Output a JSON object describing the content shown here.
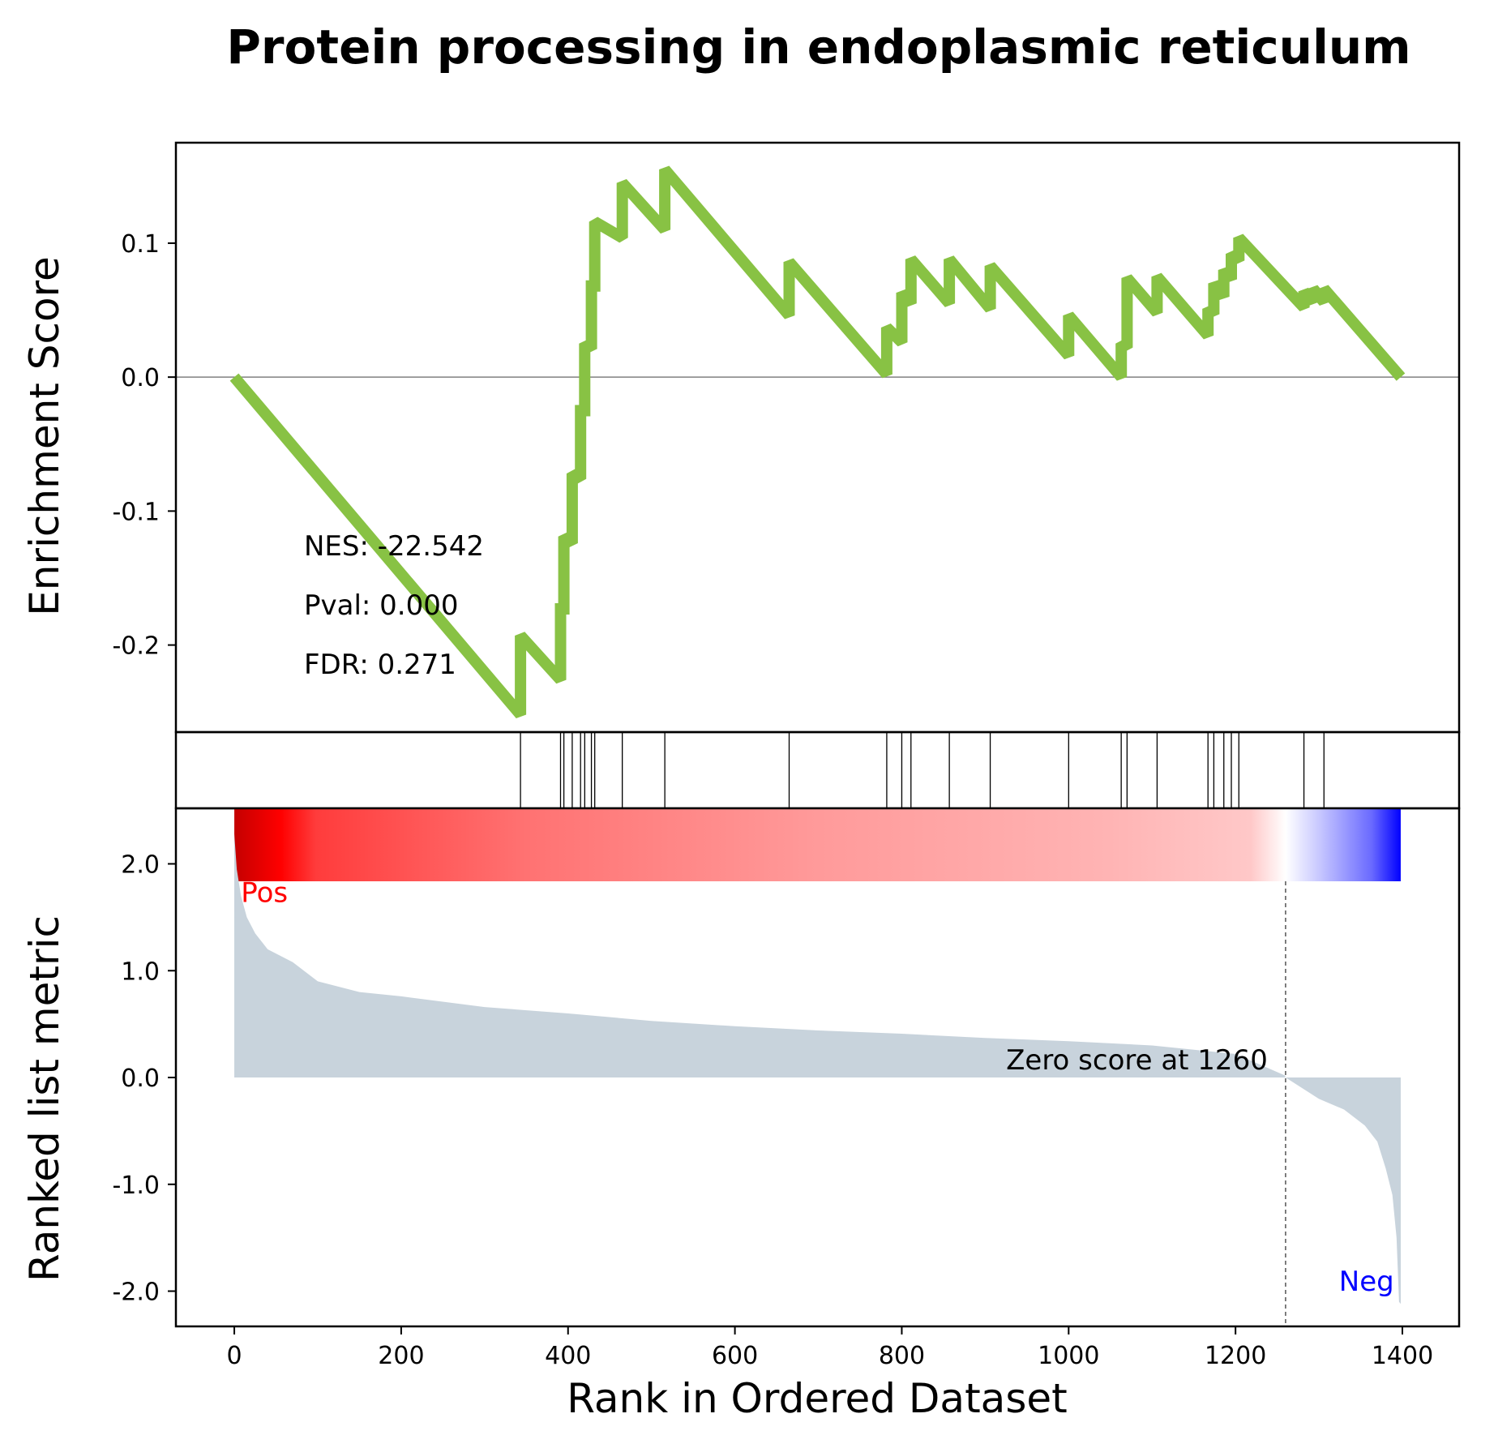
{
  "title": "Protein processing in endoplasmic reticulum",
  "colors": {
    "es_line": "#88c244",
    "metric_fill": "#c8d3dc",
    "pos_label": "#ff0000",
    "neg_label": "#0000ff",
    "heat_red": "#ff0000",
    "heat_blue": "#0000ff"
  },
  "chart_data": {
    "type": "line",
    "xlabel": "Rank in Ordered Dataset",
    "x_ticks": [
      0,
      200,
      400,
      600,
      800,
      1000,
      1200,
      1400
    ],
    "x_tick_labels": [
      "0",
      "200",
      "400",
      "600",
      "800",
      "1000",
      "1200",
      "1400"
    ],
    "xlim": [
      -70,
      1468
    ],
    "n_ranks": 1398,
    "enrichment": {
      "ylabel": "Enrichment Score",
      "ylim": [
        -0.265,
        0.175
      ],
      "y_ticks": [
        0.1,
        0.0,
        -0.1,
        -0.2
      ],
      "y_tick_labels": [
        "0.1",
        "0.0",
        "-0.1",
        "-0.2"
      ],
      "zero_line": true,
      "stats": [
        "NES: -22.542",
        "Pval: 0.000",
        "FDR: 0.271"
      ],
      "points": [
        [
          0,
          0.0
        ],
        [
          343,
          -0.252
        ],
        [
          343,
          -0.193
        ],
        [
          391,
          -0.226
        ],
        [
          391,
          -0.173
        ],
        [
          395,
          -0.173
        ],
        [
          395,
          -0.119
        ],
        [
          405,
          -0.124
        ],
        [
          405,
          -0.072
        ],
        [
          415,
          -0.076
        ],
        [
          415,
          -0.025
        ],
        [
          420,
          -0.025
        ],
        [
          420,
          0.025
        ],
        [
          428,
          0.021
        ],
        [
          428,
          0.068
        ],
        [
          432,
          0.068
        ],
        [
          432,
          0.116
        ],
        [
          465,
          0.104
        ],
        [
          465,
          0.145
        ],
        [
          516,
          0.11
        ],
        [
          516,
          0.155
        ],
        [
          665,
          0.046
        ],
        [
          665,
          0.086
        ],
        [
          782,
          0.002
        ],
        [
          782,
          0.037
        ],
        [
          800,
          0.026
        ],
        [
          800,
          0.063
        ],
        [
          811,
          0.055
        ],
        [
          811,
          0.088
        ],
        [
          857,
          0.055
        ],
        [
          857,
          0.088
        ],
        [
          906,
          0.051
        ],
        [
          906,
          0.083
        ],
        [
          1000,
          0.016
        ],
        [
          1000,
          0.046
        ],
        [
          1063,
          0.0
        ],
        [
          1063,
          0.025
        ],
        [
          1070,
          0.022
        ],
        [
          1070,
          0.074
        ],
        [
          1106,
          0.048
        ],
        [
          1106,
          0.075
        ],
        [
          1167,
          0.031
        ],
        [
          1167,
          0.051
        ],
        [
          1174,
          0.047
        ],
        [
          1174,
          0.07
        ],
        [
          1186,
          0.06
        ],
        [
          1186,
          0.08
        ],
        [
          1195,
          0.073
        ],
        [
          1195,
          0.092
        ],
        [
          1204,
          0.087
        ],
        [
          1204,
          0.104
        ],
        [
          1282,
          0.052
        ],
        [
          1282,
          0.064
        ],
        [
          1293,
          0.056
        ],
        [
          1293,
          0.066
        ],
        [
          1306,
          0.056
        ],
        [
          1306,
          0.066
        ],
        [
          1398,
          0.0
        ]
      ]
    },
    "hits": [
      343,
      391,
      395,
      405,
      415,
      420,
      428,
      432,
      465,
      516,
      665,
      782,
      800,
      811,
      857,
      906,
      1000,
      1063,
      1070,
      1106,
      1167,
      1174,
      1186,
      1195,
      1204,
      1282,
      1306
    ],
    "metric": {
      "ylabel": "Ranked list metric",
      "ylim": [
        -2.33,
        2.52
      ],
      "y_ticks": [
        2.0,
        1.0,
        0.0,
        -1.0,
        -2.0
      ],
      "y_tick_labels": [
        "2.0",
        "1.0",
        "0.0",
        "-1.0",
        "-2.0"
      ],
      "zero_cross_rank": 1260,
      "zero_label": "Zero score at 1260",
      "pos_label": "Pos",
      "neg_label": "Neg",
      "profile": [
        [
          0,
          2.28
        ],
        [
          3,
          1.95
        ],
        [
          8,
          1.7
        ],
        [
          15,
          1.5
        ],
        [
          25,
          1.35
        ],
        [
          40,
          1.2
        ],
        [
          70,
          1.08
        ],
        [
          100,
          0.9
        ],
        [
          150,
          0.8
        ],
        [
          200,
          0.76
        ],
        [
          300,
          0.66
        ],
        [
          400,
          0.6
        ],
        [
          500,
          0.53
        ],
        [
          600,
          0.48
        ],
        [
          700,
          0.44
        ],
        [
          800,
          0.41
        ],
        [
          900,
          0.37
        ],
        [
          1000,
          0.34
        ],
        [
          1100,
          0.3
        ],
        [
          1200,
          0.22
        ],
        [
          1259,
          0.02
        ],
        [
          1260,
          0.0
        ],
        [
          1300,
          -0.2
        ],
        [
          1330,
          -0.3
        ],
        [
          1355,
          -0.45
        ],
        [
          1370,
          -0.6
        ],
        [
          1380,
          -0.85
        ],
        [
          1388,
          -1.1
        ],
        [
          1393,
          -1.5
        ],
        [
          1396,
          -2.1
        ],
        [
          1398,
          -2.12
        ]
      ]
    }
  }
}
